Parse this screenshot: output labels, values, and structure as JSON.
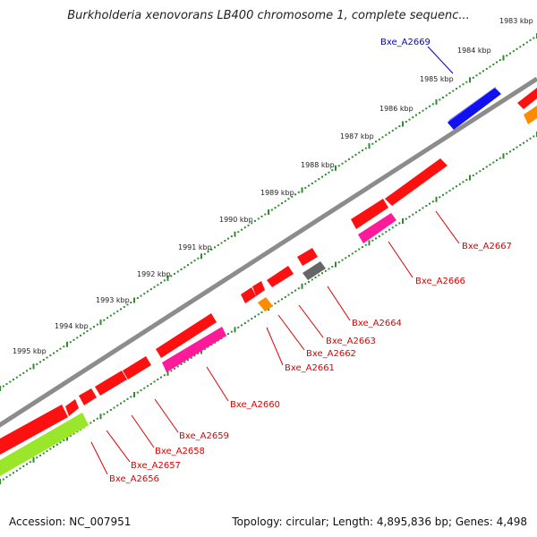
{
  "title": "Burkholderia xenovorans LB400 chromosome 1, complete sequenc...",
  "footer": {
    "accession": "Accession: NC_007951",
    "topology": "Topology: circular; Length: 4,895,836 bp; Genes: 4,498"
  },
  "colors": {
    "backbone": "#808080",
    "scale_dots": "#2e8b2e",
    "label_red": "#e00000",
    "label_blue": "#0000e0",
    "gene_red": "#ff1010",
    "gene_blue": "#1010f0",
    "gene_pink": "#ff1a9a",
    "gene_orange": "#ff8c00",
    "gene_gray": "#666666",
    "gene_green": "#9ae62a"
  },
  "scale_labels": [
    "1983 kbp",
    "1984 kbp",
    "1985 kbp",
    "1986 kbp",
    "1987 kbp",
    "1988 kbp",
    "1989 kbp",
    "1990 kbp",
    "1991 kbp",
    "1992 kbp",
    "1993 kbp",
    "1994 kbp",
    "1995 kbp"
  ],
  "genes": [
    {
      "id": "g-2669",
      "label": "Bxe_A2669",
      "color": "gene_blue",
      "label_color": "label_blue"
    },
    {
      "id": "g-2667",
      "label": "Bxe_A2667",
      "color": "gene_red",
      "label_color": "label_red"
    },
    {
      "id": "g-2666",
      "label": "Bxe_A2666",
      "color": "gene_pink",
      "label_color": "label_red"
    },
    {
      "id": "g-2664",
      "label": "Bxe_A2664",
      "color": "gene_gray",
      "label_color": "label_red"
    },
    {
      "id": "g-2663",
      "label": "Bxe_A2663",
      "color": "gene_red",
      "label_color": "label_red"
    },
    {
      "id": "g-2662",
      "label": "Bxe_A2662",
      "color": "gene_red",
      "label_color": "label_red"
    },
    {
      "id": "g-2661",
      "label": "Bxe_A2661",
      "color": "gene_orange",
      "label_color": "label_red"
    },
    {
      "id": "g-2660",
      "label": "Bxe_A2660",
      "color": "gene_pink",
      "label_color": "label_red"
    },
    {
      "id": "g-2659",
      "label": "Bxe_A2659",
      "color": "gene_red",
      "label_color": "label_red"
    },
    {
      "id": "g-2658",
      "label": "Bxe_A2658",
      "color": "gene_red",
      "label_color": "label_red"
    },
    {
      "id": "g-2657",
      "label": "Bxe_A2657",
      "color": "gene_red",
      "label_color": "label_red"
    },
    {
      "id": "g-2656",
      "label": "Bxe_A2656",
      "color": "gene_green",
      "label_color": "label_red"
    }
  ]
}
